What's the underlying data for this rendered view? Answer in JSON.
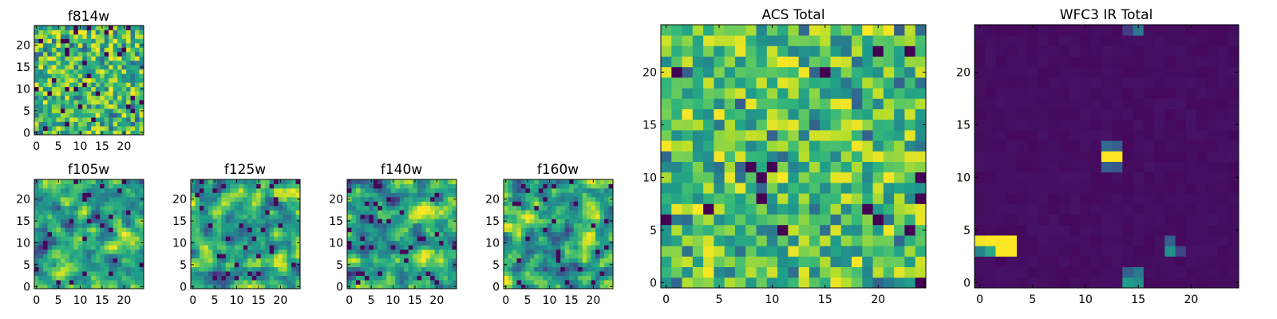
{
  "chart_data": [
    {
      "type": "heatmap",
      "key": "f814w",
      "title": "f814w",
      "colormap": "viridis",
      "pattern": "noise",
      "seed": 814,
      "grid_size": 25,
      "xlim": [
        -0.5,
        24.5
      ],
      "ylim": [
        -0.5,
        24.5
      ],
      "xticks": [
        0,
        5,
        10,
        15,
        20
      ],
      "yticks": [
        0,
        5,
        10,
        15,
        20
      ]
    },
    {
      "type": "heatmap",
      "key": "f105w",
      "title": "f105w",
      "colormap": "viridis",
      "pattern": "smooth",
      "seed": 105,
      "grid_size": 25,
      "xlim": [
        -0.5,
        24.5
      ],
      "ylim": [
        -0.5,
        24.5
      ],
      "xticks": [
        0,
        5,
        10,
        15,
        20
      ],
      "yticks": [
        0,
        5,
        10,
        15,
        20
      ]
    },
    {
      "type": "heatmap",
      "key": "f125w",
      "title": "f125w",
      "colormap": "viridis",
      "pattern": "smooth",
      "seed": 125,
      "grid_size": 25,
      "xlim": [
        -0.5,
        24.5
      ],
      "ylim": [
        -0.5,
        24.5
      ],
      "xticks": [
        0,
        5,
        10,
        15,
        20
      ],
      "yticks": [
        0,
        5,
        10,
        15,
        20
      ]
    },
    {
      "type": "heatmap",
      "key": "f140w",
      "title": "f140w",
      "colormap": "viridis",
      "pattern": "smooth",
      "seed": 140,
      "grid_size": 25,
      "xlim": [
        -0.5,
        24.5
      ],
      "ylim": [
        -0.5,
        24.5
      ],
      "xticks": [
        0,
        5,
        10,
        15,
        20
      ],
      "yticks": [
        0,
        5,
        10,
        15,
        20
      ]
    },
    {
      "type": "heatmap",
      "key": "f160w",
      "title": "f160w",
      "colormap": "viridis",
      "pattern": "smooth",
      "seed": 160,
      "grid_size": 25,
      "xlim": [
        -0.5,
        24.5
      ],
      "ylim": [
        -0.5,
        24.5
      ],
      "xticks": [
        0,
        5,
        10,
        15,
        20
      ],
      "yticks": [
        0,
        5,
        10,
        15,
        20
      ]
    },
    {
      "type": "heatmap",
      "key": "acs_total",
      "title": "ACS Total",
      "colormap": "viridis",
      "pattern": "noise",
      "seed": 4242,
      "grid_size": 25,
      "xlim": [
        -0.5,
        24.5
      ],
      "ylim": [
        -0.5,
        24.5
      ],
      "xticks": [
        0,
        5,
        10,
        15,
        20
      ],
      "yticks": [
        0,
        5,
        10,
        15,
        20
      ]
    },
    {
      "type": "heatmap",
      "key": "wfc3_ir_total",
      "title": "WFC3 IR Total",
      "colormap": "viridis",
      "pattern": "sparse",
      "seed": 3,
      "grid_size": 25,
      "background_level": 0.02,
      "hotspots": [
        {
          "x": 0,
          "y": 4,
          "value": 0.98
        },
        {
          "x": 1,
          "y": 4,
          "value": 1.0
        },
        {
          "x": 2,
          "y": 4,
          "value": 1.0
        },
        {
          "x": 3,
          "y": 4,
          "value": 1.0
        },
        {
          "x": 0,
          "y": 3,
          "value": 0.45
        },
        {
          "x": 1,
          "y": 3,
          "value": 0.6
        },
        {
          "x": 2,
          "y": 3,
          "value": 1.0
        },
        {
          "x": 3,
          "y": 3,
          "value": 1.0
        },
        {
          "x": 12,
          "y": 12,
          "value": 1.0
        },
        {
          "x": 13,
          "y": 12,
          "value": 1.0
        },
        {
          "x": 12,
          "y": 13,
          "value": 0.35
        },
        {
          "x": 13,
          "y": 13,
          "value": 0.3
        },
        {
          "x": 12,
          "y": 11,
          "value": 0.3
        },
        {
          "x": 13,
          "y": 11,
          "value": 0.28
        },
        {
          "x": 14,
          "y": 0,
          "value": 0.55
        },
        {
          "x": 15,
          "y": 0,
          "value": 0.5
        },
        {
          "x": 15,
          "y": 1,
          "value": 0.4
        },
        {
          "x": 14,
          "y": 1,
          "value": 0.3
        },
        {
          "x": 18,
          "y": 3,
          "value": 0.5
        },
        {
          "x": 18,
          "y": 4,
          "value": 0.3
        },
        {
          "x": 19,
          "y": 3,
          "value": 0.2
        },
        {
          "x": 15,
          "y": 24,
          "value": 0.4
        },
        {
          "x": 14,
          "y": 24,
          "value": 0.18
        }
      ],
      "xlim": [
        -0.5,
        24.5
      ],
      "ylim": [
        -0.5,
        24.5
      ],
      "xticks": [
        0,
        5,
        10,
        15,
        20
      ],
      "yticks": [
        0,
        5,
        10,
        15,
        20
      ]
    }
  ]
}
